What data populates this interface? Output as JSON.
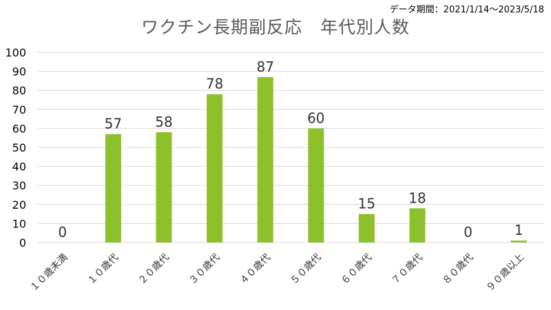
{
  "chart_data": {
    "type": "bar",
    "title": "ワクチン長期副反応　年代別人数",
    "period_note": "データ期間：2021/1/14～2023/5/18",
    "categories": [
      "１０歳未満",
      "１０歳代",
      "２０歳代",
      "３０歳代",
      "４０歳代",
      "５０歳代",
      "６０歳代",
      "７０歳代",
      "８０歳代",
      "９０歳以上"
    ],
    "values": [
      0,
      57,
      58,
      78,
      87,
      60,
      15,
      18,
      0,
      1
    ],
    "ylim": [
      0,
      100
    ],
    "yticks": [
      0,
      10,
      20,
      30,
      40,
      50,
      60,
      70,
      80,
      90,
      100
    ],
    "grid": true,
    "data_labels": true,
    "xlabel": "",
    "ylabel": "",
    "bar_color": "#8dc02a",
    "grid_color": "#d9d9d9"
  }
}
